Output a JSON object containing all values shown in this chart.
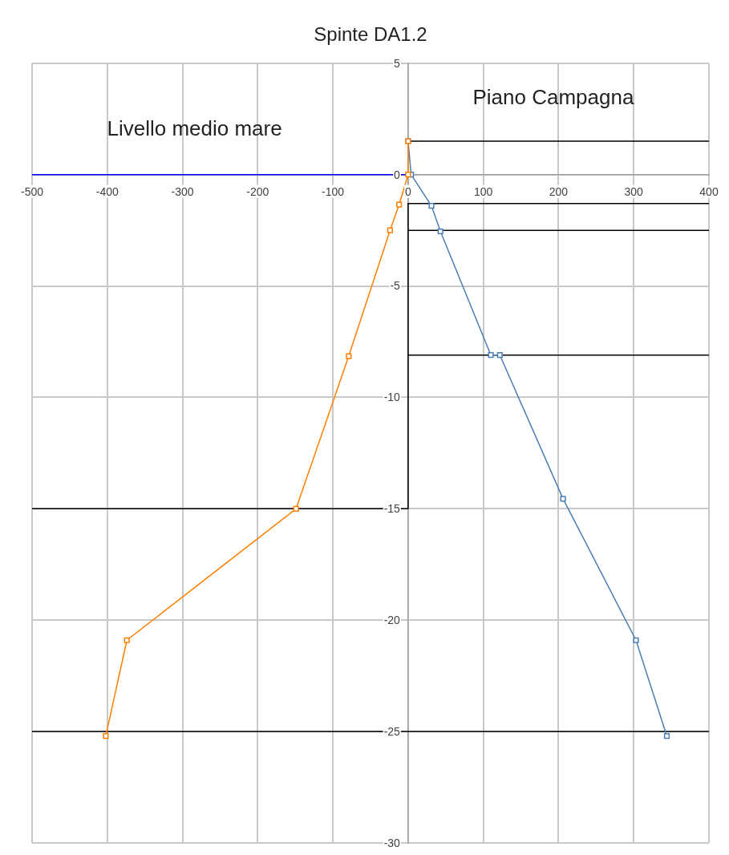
{
  "chart_data": {
    "type": "line",
    "title": "Spinte DA1.2",
    "xlim": [
      -500,
      400
    ],
    "xticks": [
      -500,
      -400,
      -300,
      -200,
      -100,
      0,
      100,
      200,
      300,
      400
    ],
    "ylim": [
      -30,
      5
    ],
    "yticks": [
      -30,
      -25,
      -20,
      -15,
      -10,
      -5,
      0,
      5
    ],
    "grid": true,
    "legend": false,
    "marker": "square",
    "series": [
      {
        "color": "#ff8000",
        "x": [
          0,
          0,
          -12,
          -24,
          -79,
          -149,
          -374,
          -402
        ],
        "values": [
          1.5,
          0,
          -1.35,
          -2.5,
          -8.15,
          -15,
          -20.9,
          -25.2
        ]
      },
      {
        "color": "#4a7eb4",
        "x": [
          0,
          4,
          31,
          43,
          110,
          122,
          206,
          303,
          344
        ],
        "values": [
          1.5,
          0,
          -1.4,
          -2.55,
          -8.1,
          -8.1,
          -14.55,
          -20.9,
          -25.2
        ]
      },
      {
        "color": "#0000ff",
        "marker": "none",
        "x": [
          -500,
          0
        ],
        "values": [
          0,
          0
        ]
      },
      {
        "color": "#000000",
        "marker": "none",
        "x": [
          0,
          400
        ],
        "values": [
          1.5,
          1.5
        ]
      },
      {
        "color": "#000000",
        "marker": "none",
        "x": [
          0,
          400
        ],
        "values": [
          -1.3,
          -1.3
        ]
      },
      {
        "color": "#000000",
        "marker": "none",
        "x": [
          0,
          400
        ],
        "values": [
          -2.5,
          -2.5
        ]
      },
      {
        "color": "#000000",
        "marker": "none",
        "x": [
          0,
          400
        ],
        "values": [
          -8.1,
          -8.1
        ]
      },
      {
        "color": "#000000",
        "marker": "none",
        "x": [
          0,
          0
        ],
        "values": [
          -1.3,
          -15
        ]
      },
      {
        "color": "#000000",
        "marker": "none",
        "x": [
          -500,
          0
        ],
        "values": [
          -15,
          -15
        ]
      },
      {
        "color": "#000000",
        "marker": "none",
        "x": [
          -500,
          400
        ],
        "values": [
          -25,
          -25
        ]
      }
    ],
    "annotations": [
      "Piano Campagna",
      "Livello medio mare"
    ]
  }
}
